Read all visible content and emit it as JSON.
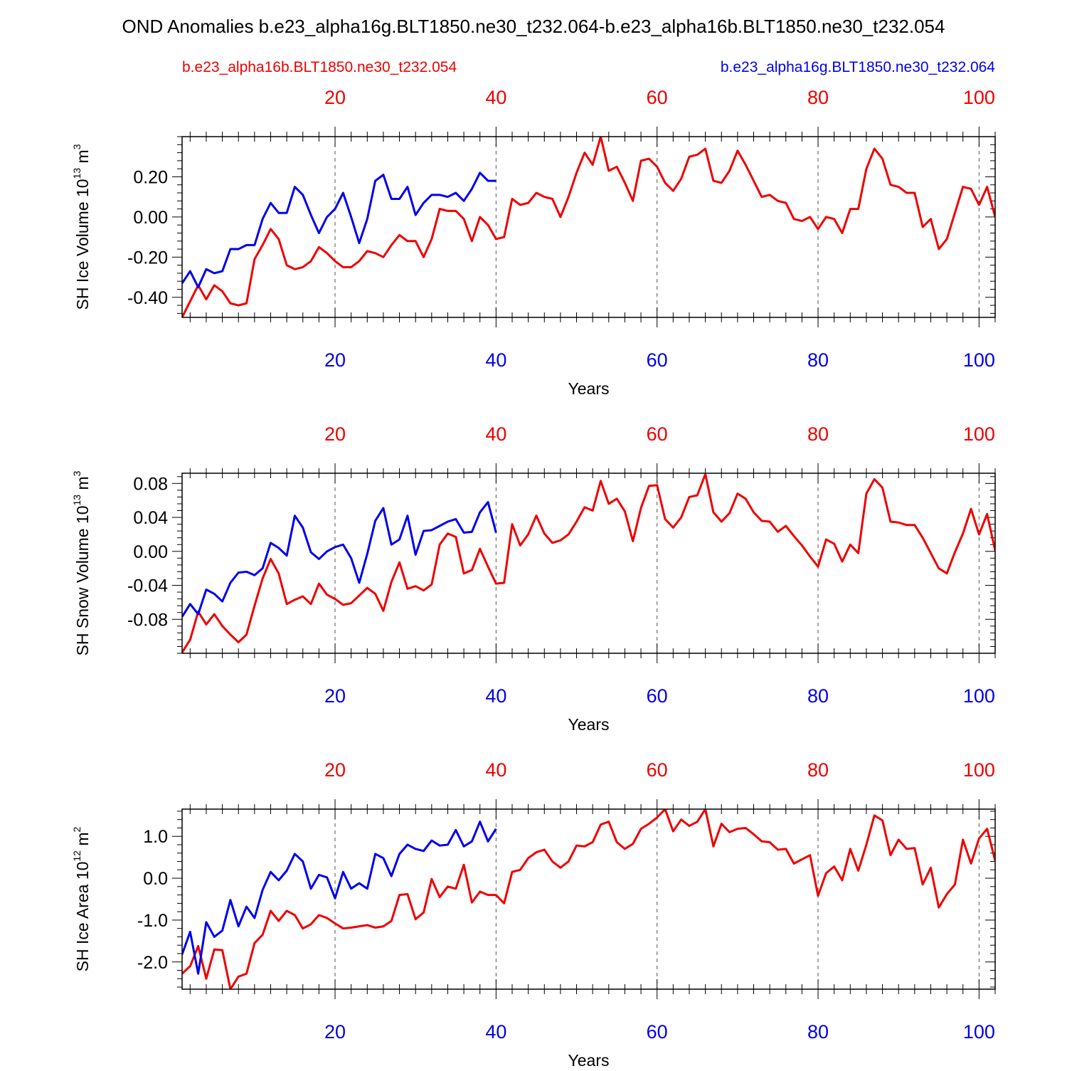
{
  "figure": {
    "title": "OND Anomalies b.e23_alpha16g.BLT1850.ne30_t232.064-b.e23_alpha16b.BLT1850.ne30_t232.054",
    "legend_red": "b.e23_alpha16b.BLT1850.ne30_t232.054",
    "legend_blue": "b.e23_alpha16g.BLT1850.ne30_t232.064",
    "colors": {
      "red": "#ee0000",
      "blue": "#0000ee",
      "axis": "#000000",
      "grid": "#555555"
    }
  },
  "chart_data": [
    {
      "type": "line",
      "ylabel": "SH Ice Volume 10",
      "ylabel_exp": "13",
      "ylabel_unit": " m",
      "ylabel_unit_exp": "3",
      "xlabel": "Years",
      "xlim": [
        1,
        102
      ],
      "ylim": [
        -0.5,
        0.4
      ],
      "yticks": [
        -0.4,
        -0.2,
        0.0,
        0.2
      ],
      "ytick_labels": [
        "-0.40",
        "-0.20",
        "0.00",
        "0.20"
      ],
      "xticks": [
        20,
        40,
        60,
        80,
        100
      ],
      "xtick_labels": [
        "20",
        "40",
        "60",
        "80",
        "100"
      ],
      "grid": "vertical-dashed",
      "series": [
        {
          "name": "b.e23_alpha16b.BLT1850.ne30_t232.054",
          "color": "#ee0000",
          "values": [
            -0.5,
            -0.42,
            -0.34,
            -0.41,
            -0.34,
            -0.37,
            -0.43,
            -0.44,
            -0.43,
            -0.21,
            -0.14,
            -0.06,
            -0.11,
            -0.24,
            -0.26,
            -0.25,
            -0.22,
            -0.15,
            -0.18,
            -0.22,
            -0.25,
            -0.25,
            -0.22,
            -0.17,
            -0.18,
            -0.2,
            -0.14,
            -0.09,
            -0.12,
            -0.12,
            -0.2,
            -0.11,
            0.04,
            0.03,
            0.03,
            -0.01,
            -0.12,
            0.0,
            -0.04,
            -0.11,
            -0.1,
            0.09,
            0.06,
            0.07,
            0.12,
            0.1,
            0.09,
            0.0,
            0.1,
            0.22,
            0.32,
            0.26,
            0.4,
            0.23,
            0.25,
            0.17,
            0.08,
            0.28,
            0.29,
            0.25,
            0.17,
            0.13,
            0.19,
            0.3,
            0.31,
            0.34,
            0.18,
            0.17,
            0.23,
            0.33,
            0.26,
            0.18,
            0.1,
            0.11,
            0.08,
            0.07,
            -0.01,
            -0.02,
            0.0,
            -0.06,
            0.0,
            -0.01,
            -0.08,
            0.04,
            0.04,
            0.24,
            0.34,
            0.29,
            0.16,
            0.15,
            0.12,
            0.12,
            -0.05,
            -0.01,
            -0.16,
            -0.11,
            0.02,
            0.15,
            0.14,
            0.06,
            0.15,
            0.0
          ]
        },
        {
          "name": "b.e23_alpha16g.BLT1850.ne30_t232.064",
          "color": "#0000ee",
          "values": [
            -0.33,
            -0.27,
            -0.35,
            -0.26,
            -0.28,
            -0.27,
            -0.16,
            -0.16,
            -0.14,
            -0.14,
            -0.01,
            0.07,
            0.02,
            0.02,
            0.15,
            0.11,
            0.01,
            -0.08,
            0.0,
            0.04,
            0.12,
            0.0,
            -0.13,
            -0.01,
            0.18,
            0.21,
            0.09,
            0.09,
            0.15,
            0.01,
            0.07,
            0.11,
            0.11,
            0.1,
            0.12,
            0.08,
            0.14,
            0.22,
            0.18,
            0.18
          ]
        }
      ]
    },
    {
      "type": "line",
      "ylabel": "SH Snow Volume 10",
      "ylabel_exp": "13",
      "ylabel_unit": " m",
      "ylabel_unit_exp": "3",
      "xlabel": "Years",
      "xlim": [
        1,
        102
      ],
      "ylim": [
        -0.12,
        0.092
      ],
      "yticks": [
        -0.08,
        -0.04,
        0.0,
        0.04,
        0.08
      ],
      "ytick_labels": [
        "-0.08",
        "-0.04",
        "0.00",
        "0.04",
        "0.08"
      ],
      "xticks": [
        20,
        40,
        60,
        80,
        100
      ],
      "xtick_labels": [
        "20",
        "40",
        "60",
        "80",
        "100"
      ],
      "grid": "vertical-dashed",
      "series": [
        {
          "name": "b.e23_alpha16b.BLT1850.ne30_t232.054",
          "color": "#ee0000",
          "values": [
            -0.119,
            -0.104,
            -0.071,
            -0.086,
            -0.074,
            -0.088,
            -0.098,
            -0.107,
            -0.098,
            -0.064,
            -0.032,
            -0.009,
            -0.026,
            -0.062,
            -0.057,
            -0.053,
            -0.062,
            -0.038,
            -0.051,
            -0.056,
            -0.063,
            -0.061,
            -0.052,
            -0.043,
            -0.05,
            -0.07,
            -0.036,
            -0.013,
            -0.044,
            -0.041,
            -0.046,
            -0.039,
            0.008,
            0.021,
            0.017,
            -0.026,
            -0.022,
            0.003,
            -0.018,
            -0.038,
            -0.037,
            0.032,
            0.007,
            0.02,
            0.042,
            0.021,
            0.01,
            0.013,
            0.02,
            0.035,
            0.052,
            0.048,
            0.083,
            0.056,
            0.062,
            0.047,
            0.012,
            0.051,
            0.077,
            0.078,
            0.038,
            0.028,
            0.04,
            0.064,
            0.066,
            0.091,
            0.046,
            0.035,
            0.045,
            0.068,
            0.062,
            0.046,
            0.036,
            0.035,
            0.023,
            0.03,
            0.018,
            0.007,
            -0.006,
            -0.018,
            0.014,
            0.009,
            -0.012,
            0.008,
            -0.002,
            0.068,
            0.085,
            0.075,
            0.035,
            0.034,
            0.031,
            0.031,
            0.016,
            -0.002,
            -0.02,
            -0.026,
            -0.001,
            0.021,
            0.05,
            0.02,
            0.044,
            0.001
          ]
        },
        {
          "name": "b.e23_alpha16g.BLT1850.ne30_t232.064",
          "color": "#0000ee",
          "values": [
            -0.077,
            -0.062,
            -0.074,
            -0.045,
            -0.05,
            -0.059,
            -0.037,
            -0.025,
            -0.024,
            -0.028,
            -0.02,
            0.01,
            0.004,
            -0.005,
            0.042,
            0.028,
            -0.001,
            -0.009,
            0.0,
            0.005,
            0.008,
            -0.008,
            -0.037,
            -0.003,
            0.036,
            0.051,
            0.008,
            0.014,
            0.042,
            -0.004,
            0.024,
            0.025,
            0.03,
            0.035,
            0.038,
            0.022,
            0.023,
            0.046,
            0.058,
            0.022
          ]
        }
      ]
    },
    {
      "type": "line",
      "ylabel": "SH Ice Area 10",
      "ylabel_exp": "12",
      "ylabel_unit": " m",
      "ylabel_unit_exp": "2",
      "xlabel": "Years",
      "xlim": [
        1,
        102
      ],
      "ylim": [
        -2.65,
        1.65
      ],
      "yticks": [
        -2.0,
        -1.0,
        0.0,
        1.0
      ],
      "ytick_labels": [
        "-2.0",
        "-1.0",
        "0.0",
        "1.0"
      ],
      "xticks": [
        20,
        40,
        60,
        80,
        100
      ],
      "xtick_labels": [
        "20",
        "40",
        "60",
        "80",
        "100"
      ],
      "grid": "vertical-dashed",
      "series": [
        {
          "name": "b.e23_alpha16b.BLT1850.ne30_t232.054",
          "color": "#ee0000",
          "values": [
            -2.28,
            -2.1,
            -1.62,
            -2.4,
            -1.7,
            -1.72,
            -2.65,
            -2.35,
            -2.28,
            -1.55,
            -1.35,
            -0.78,
            -1.02,
            -0.78,
            -0.88,
            -1.2,
            -1.1,
            -0.88,
            -0.95,
            -1.08,
            -1.2,
            -1.18,
            -1.15,
            -1.12,
            -1.18,
            -1.15,
            -1.02,
            -0.4,
            -0.38,
            -0.98,
            -0.82,
            -0.02,
            -0.45,
            -0.2,
            -0.25,
            0.32,
            -0.58,
            -0.32,
            -0.4,
            -0.4,
            -0.6,
            0.15,
            0.2,
            0.48,
            0.62,
            0.68,
            0.4,
            0.25,
            0.4,
            0.78,
            0.76,
            0.86,
            1.28,
            1.35,
            0.86,
            0.7,
            0.82,
            1.18,
            1.3,
            1.45,
            1.65,
            1.12,
            1.4,
            1.25,
            1.35,
            1.65,
            0.76,
            1.3,
            1.1,
            1.18,
            1.2,
            1.05,
            0.88,
            0.86,
            0.68,
            0.7,
            0.35,
            0.45,
            0.55,
            -0.42,
            0.12,
            0.28,
            -0.05,
            0.7,
            0.18,
            0.8,
            1.5,
            1.38,
            0.55,
            0.92,
            0.7,
            0.72,
            -0.15,
            0.25,
            -0.7,
            -0.38,
            -0.15,
            0.92,
            0.35,
            0.95,
            1.18,
            0.42
          ]
        },
        {
          "name": "b.e23_alpha16g.BLT1850.ne30_t232.064",
          "color": "#0000ee",
          "values": [
            -1.82,
            -1.28,
            -2.28,
            -1.05,
            -1.4,
            -1.25,
            -0.52,
            -1.15,
            -0.68,
            -0.95,
            -0.28,
            0.15,
            -0.05,
            0.18,
            0.58,
            0.4,
            -0.25,
            0.08,
            0.02,
            -0.48,
            0.15,
            -0.25,
            -0.12,
            -0.25,
            0.58,
            0.48,
            0.05,
            0.58,
            0.8,
            0.7,
            0.65,
            0.9,
            0.78,
            0.8,
            1.15,
            0.76,
            0.88,
            1.35,
            0.88,
            1.18
          ]
        }
      ]
    }
  ]
}
